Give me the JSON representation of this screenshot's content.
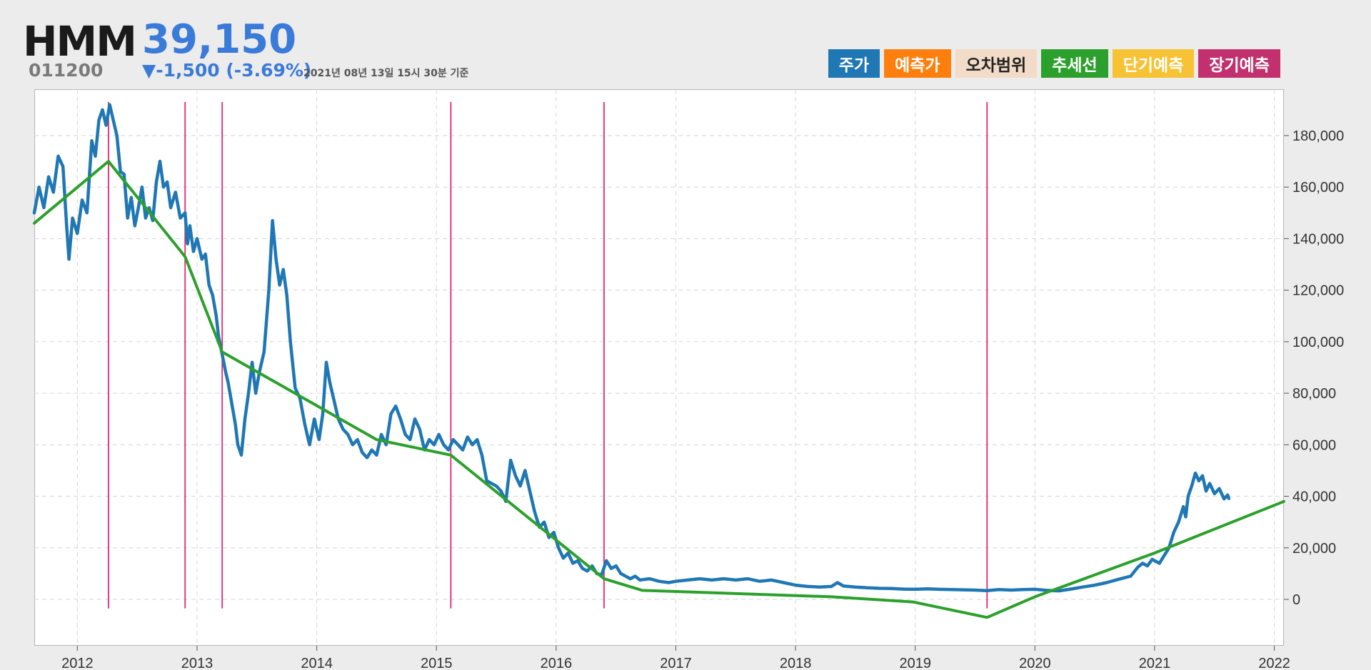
{
  "header": {
    "name": "HMM",
    "price": "39,150",
    "code": "011200",
    "change": "▼-1,500 (-3.69%)",
    "as_of": "2021년 08년 13일 15시 30분 기준"
  },
  "legend": [
    {
      "label": "주가",
      "bg": "#1f77b4",
      "fg": "#ffffff"
    },
    {
      "label": "예측가",
      "bg": "#ff7f0e",
      "fg": "#ffffff"
    },
    {
      "label": "오차범위",
      "bg": "#f2dcc8",
      "fg": "#222222"
    },
    {
      "label": "추세선",
      "bg": "#2ca02c",
      "fg": "#ffffff"
    },
    {
      "label": "단기예측",
      "bg": "#f7c234",
      "fg": "#ffffff"
    },
    {
      "label": "장기예측",
      "bg": "#c2316e",
      "fg": "#ffffff"
    }
  ],
  "chart_data": {
    "type": "line",
    "xlim": [
      2011.64,
      2022.08
    ],
    "ylim": [
      -18000,
      198000
    ],
    "x_ticks": [
      2012,
      2013,
      2014,
      2015,
      2016,
      2017,
      2018,
      2019,
      2020,
      2021,
      2022
    ],
    "y_ticks": [
      0,
      20000,
      40000,
      60000,
      80000,
      100000,
      120000,
      140000,
      160000,
      180000
    ],
    "y_tick_labels": [
      "0",
      "20,000",
      "40,000",
      "60,000",
      "80,000",
      "100,000",
      "120,000",
      "140,000",
      "160,000",
      "180,000"
    ],
    "grid": true,
    "series": [
      {
        "color": "#1f77b4",
        "points": [
          [
            2011.64,
            150000
          ],
          [
            2011.68,
            160000
          ],
          [
            2011.72,
            152000
          ],
          [
            2011.76,
            164000
          ],
          [
            2011.8,
            158000
          ],
          [
            2011.84,
            172000
          ],
          [
            2011.88,
            168000
          ],
          [
            2011.91,
            145000
          ],
          [
            2011.93,
            132000
          ],
          [
            2011.96,
            148000
          ],
          [
            2012.0,
            142000
          ],
          [
            2012.04,
            155000
          ],
          [
            2012.08,
            150000
          ],
          [
            2012.12,
            178000
          ],
          [
            2012.15,
            172000
          ],
          [
            2012.18,
            186000
          ],
          [
            2012.21,
            190000
          ],
          [
            2012.24,
            184000
          ],
          [
            2012.27,
            192000
          ],
          [
            2012.3,
            186000
          ],
          [
            2012.33,
            180000
          ],
          [
            2012.36,
            166000
          ],
          [
            2012.39,
            165000
          ],
          [
            2012.42,
            148000
          ],
          [
            2012.45,
            156000
          ],
          [
            2012.48,
            145000
          ],
          [
            2012.51,
            152000
          ],
          [
            2012.54,
            160000
          ],
          [
            2012.57,
            148000
          ],
          [
            2012.6,
            152000
          ],
          [
            2012.63,
            147000
          ],
          [
            2012.66,
            162000
          ],
          [
            2012.69,
            170000
          ],
          [
            2012.72,
            160000
          ],
          [
            2012.75,
            162000
          ],
          [
            2012.78,
            152000
          ],
          [
            2012.82,
            158000
          ],
          [
            2012.86,
            148000
          ],
          [
            2012.9,
            150000
          ],
          [
            2012.92,
            138000
          ],
          [
            2012.94,
            145000
          ],
          [
            2012.97,
            135000
          ],
          [
            2013.0,
            140000
          ],
          [
            2013.04,
            132000
          ],
          [
            2013.07,
            134000
          ],
          [
            2013.1,
            122000
          ],
          [
            2013.13,
            118000
          ],
          [
            2013.16,
            110000
          ],
          [
            2013.18,
            102000
          ],
          [
            2013.21,
            95000
          ],
          [
            2013.24,
            88000
          ],
          [
            2013.26,
            84000
          ],
          [
            2013.29,
            76000
          ],
          [
            2013.32,
            68000
          ],
          [
            2013.34,
            60000
          ],
          [
            2013.37,
            56000
          ],
          [
            2013.4,
            70000
          ],
          [
            2013.43,
            80000
          ],
          [
            2013.46,
            92000
          ],
          [
            2013.49,
            80000
          ],
          [
            2013.52,
            88000
          ],
          [
            2013.56,
            96000
          ],
          [
            2013.6,
            120000
          ],
          [
            2013.63,
            147000
          ],
          [
            2013.66,
            132000
          ],
          [
            2013.69,
            122000
          ],
          [
            2013.72,
            128000
          ],
          [
            2013.75,
            118000
          ],
          [
            2013.78,
            100000
          ],
          [
            2013.82,
            82000
          ],
          [
            2013.86,
            78000
          ],
          [
            2013.9,
            68000
          ],
          [
            2013.94,
            60000
          ],
          [
            2013.98,
            70000
          ],
          [
            2014.02,
            62000
          ],
          [
            2014.05,
            72000
          ],
          [
            2014.08,
            92000
          ],
          [
            2014.11,
            84000
          ],
          [
            2014.14,
            78000
          ],
          [
            2014.18,
            70000
          ],
          [
            2014.22,
            66000
          ],
          [
            2014.26,
            64000
          ],
          [
            2014.3,
            60000
          ],
          [
            2014.34,
            62000
          ],
          [
            2014.38,
            57000
          ],
          [
            2014.42,
            55000
          ],
          [
            2014.46,
            58000
          ],
          [
            2014.5,
            56000
          ],
          [
            2014.54,
            64000
          ],
          [
            2014.58,
            60000
          ],
          [
            2014.62,
            72000
          ],
          [
            2014.66,
            75000
          ],
          [
            2014.7,
            70000
          ],
          [
            2014.74,
            64000
          ],
          [
            2014.78,
            62000
          ],
          [
            2014.82,
            70000
          ],
          [
            2014.86,
            66000
          ],
          [
            2014.9,
            58000
          ],
          [
            2014.94,
            62000
          ],
          [
            2014.98,
            60000
          ],
          [
            2015.02,
            64000
          ],
          [
            2015.06,
            60000
          ],
          [
            2015.1,
            58000
          ],
          [
            2015.14,
            62000
          ],
          [
            2015.18,
            60000
          ],
          [
            2015.22,
            58000
          ],
          [
            2015.26,
            63000
          ],
          [
            2015.3,
            60000
          ],
          [
            2015.34,
            62000
          ],
          [
            2015.38,
            56000
          ],
          [
            2015.42,
            46000
          ],
          [
            2015.46,
            45000
          ],
          [
            2015.5,
            44000
          ],
          [
            2015.54,
            42000
          ],
          [
            2015.58,
            38000
          ],
          [
            2015.62,
            54000
          ],
          [
            2015.66,
            48000
          ],
          [
            2015.7,
            44000
          ],
          [
            2015.74,
            50000
          ],
          [
            2015.78,
            42000
          ],
          [
            2015.82,
            34000
          ],
          [
            2015.86,
            28000
          ],
          [
            2015.9,
            30000
          ],
          [
            2015.94,
            24000
          ],
          [
            2015.98,
            26000
          ],
          [
            2016.02,
            20000
          ],
          [
            2016.06,
            16000
          ],
          [
            2016.1,
            18000
          ],
          [
            2016.14,
            14000
          ],
          [
            2016.18,
            15000
          ],
          [
            2016.22,
            12000
          ],
          [
            2016.26,
            11000
          ],
          [
            2016.3,
            13000
          ],
          [
            2016.34,
            10000
          ],
          [
            2016.38,
            9500
          ],
          [
            2016.42,
            15000
          ],
          [
            2016.46,
            12000
          ],
          [
            2016.5,
            13000
          ],
          [
            2016.54,
            10000
          ],
          [
            2016.58,
            9000
          ],
          [
            2016.62,
            8000
          ],
          [
            2016.66,
            9000
          ],
          [
            2016.7,
            7500
          ],
          [
            2016.78,
            8000
          ],
          [
            2016.86,
            7000
          ],
          [
            2016.94,
            6500
          ],
          [
            2017.0,
            7000
          ],
          [
            2017.1,
            7500
          ],
          [
            2017.2,
            8000
          ],
          [
            2017.3,
            7500
          ],
          [
            2017.4,
            8000
          ],
          [
            2017.5,
            7500
          ],
          [
            2017.6,
            8000
          ],
          [
            2017.7,
            7000
          ],
          [
            2017.8,
            7500
          ],
          [
            2017.9,
            6500
          ],
          [
            2018.0,
            5500
          ],
          [
            2018.1,
            5000
          ],
          [
            2018.2,
            4800
          ],
          [
            2018.3,
            5000
          ],
          [
            2018.35,
            6500
          ],
          [
            2018.4,
            5200
          ],
          [
            2018.5,
            4800
          ],
          [
            2018.6,
            4500
          ],
          [
            2018.7,
            4300
          ],
          [
            2018.8,
            4200
          ],
          [
            2018.9,
            4000
          ],
          [
            2019.0,
            3900
          ],
          [
            2019.1,
            4100
          ],
          [
            2019.2,
            3900
          ],
          [
            2019.3,
            3800
          ],
          [
            2019.4,
            3700
          ],
          [
            2019.5,
            3600
          ],
          [
            2019.6,
            3400
          ],
          [
            2019.7,
            3800
          ],
          [
            2019.8,
            3600
          ],
          [
            2019.9,
            3800
          ],
          [
            2020.0,
            3900
          ],
          [
            2020.1,
            3500
          ],
          [
            2020.2,
            3300
          ],
          [
            2020.3,
            4000
          ],
          [
            2020.4,
            4800
          ],
          [
            2020.5,
            5500
          ],
          [
            2020.6,
            6500
          ],
          [
            2020.7,
            7800
          ],
          [
            2020.8,
            9000
          ],
          [
            2020.86,
            12500
          ],
          [
            2020.9,
            14000
          ],
          [
            2020.94,
            13000
          ],
          [
            2020.98,
            15500
          ],
          [
            2021.04,
            14000
          ],
          [
            2021.08,
            17000
          ],
          [
            2021.12,
            20000
          ],
          [
            2021.16,
            26000
          ],
          [
            2021.2,
            30000
          ],
          [
            2021.24,
            36000
          ],
          [
            2021.26,
            32000
          ],
          [
            2021.28,
            40000
          ],
          [
            2021.31,
            44000
          ],
          [
            2021.34,
            49000
          ],
          [
            2021.37,
            46000
          ],
          [
            2021.4,
            48000
          ],
          [
            2021.43,
            42000
          ],
          [
            2021.46,
            45000
          ],
          [
            2021.5,
            41000
          ],
          [
            2021.54,
            43000
          ],
          [
            2021.58,
            39000
          ],
          [
            2021.61,
            40500
          ],
          [
            2021.62,
            39150
          ]
        ]
      },
      {
        "color": "#2ca02c",
        "points": [
          [
            2011.64,
            146000
          ],
          [
            2012.26,
            170000
          ],
          [
            2012.9,
            133000
          ],
          [
            2013.21,
            96000
          ],
          [
            2014.5,
            62000
          ],
          [
            2015.12,
            56000
          ],
          [
            2016.4,
            8000
          ],
          [
            2016.72,
            3500
          ],
          [
            2018.3,
            1000
          ],
          [
            2018.98,
            -1000
          ],
          [
            2019.6,
            -7000
          ],
          [
            2020.0,
            1000
          ],
          [
            2021.0,
            18000
          ],
          [
            2022.08,
            38000
          ]
        ]
      }
    ],
    "vertical_markers": [
      2012.26,
      2012.9,
      2013.21,
      2015.12,
      2016.4,
      2019.6
    ],
    "vertical_marker_color": "#e8256f"
  }
}
